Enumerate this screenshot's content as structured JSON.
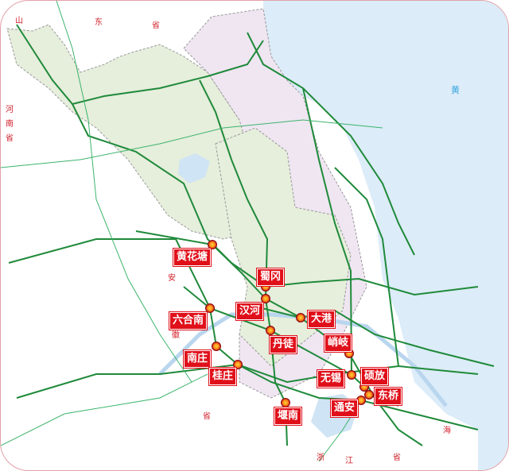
{
  "map": {
    "regions": [
      "山",
      "东",
      "省",
      "河",
      "南",
      "省",
      "安",
      "徽",
      "省",
      "浙",
      "江",
      "省",
      "黄",
      "海"
    ],
    "stations": [
      "黄花塘",
      "蜀冈",
      "汉河",
      "六合南",
      "大港",
      "丹徒",
      "峭岐",
      "南庄",
      "桂庄",
      "无锡",
      "硕放",
      "东桥",
      "通安",
      "堰南"
    ],
    "colors": {
      "sea": "#dcecf8",
      "province_a": "#e6eedc",
      "province_b": "#efe6f2",
      "expressway": "#1f8a3a",
      "rail": "#3cb46c",
      "station": "#e0101a"
    }
  }
}
